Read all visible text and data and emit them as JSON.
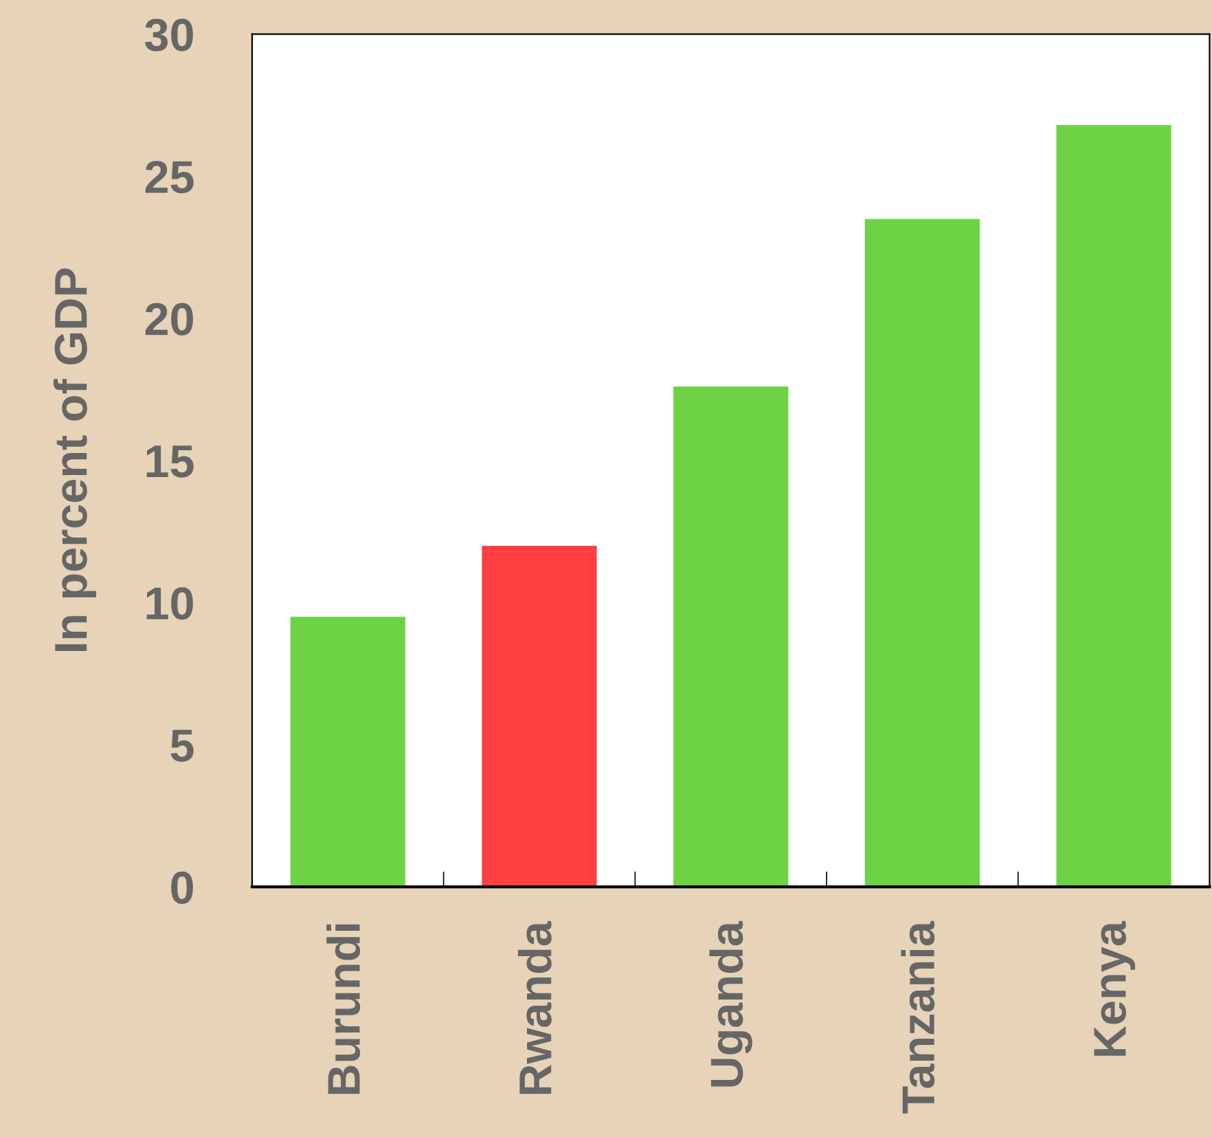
{
  "chart_data": {
    "type": "bar",
    "ylabel": "In percent of GDP",
    "categories": [
      "Burundi",
      "Rwanda",
      "Uganda",
      "Tanzania",
      "Kenya"
    ],
    "values": [
      9.5,
      12.0,
      17.6,
      23.5,
      26.8
    ],
    "colors": [
      "#6dd344",
      "#ff4040",
      "#6dd344",
      "#6dd344",
      "#6dd344"
    ],
    "ylim": [
      0,
      30
    ],
    "yticks": [
      0,
      5,
      10,
      15,
      20,
      25,
      30
    ],
    "grid": false,
    "legend": false
  }
}
